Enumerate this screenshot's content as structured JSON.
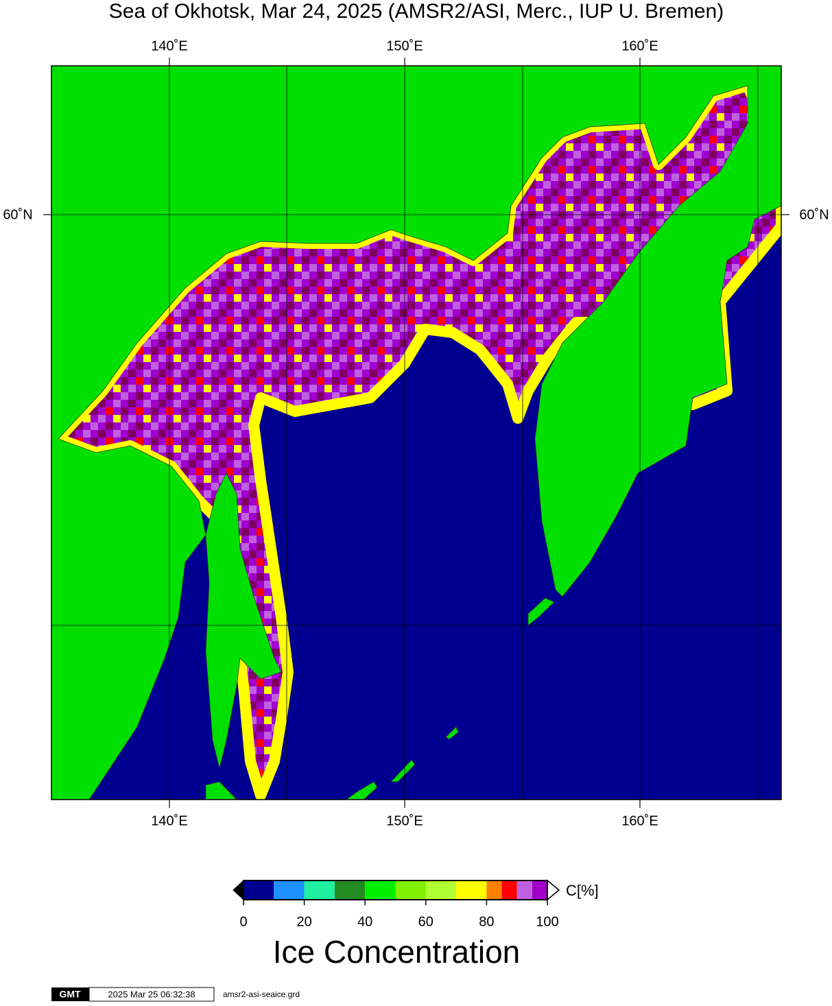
{
  "header": {
    "title": "Sea of Okhotsk, Mar 24, 2025 (AMSR2/ASI, Merc., IUP U. Bremen)"
  },
  "map": {
    "lon_labels": [
      "140˚E",
      "150˚E",
      "160˚E"
    ],
    "lat_labels": [
      "60˚N"
    ]
  },
  "colorbar": {
    "bins": [
      0,
      10,
      20,
      30,
      40,
      50,
      60,
      70,
      80,
      85,
      90,
      95,
      100
    ],
    "colors": [
      "#000090",
      "#1e90ff",
      "#20f0a0",
      "#228b22",
      "#00ee00",
      "#80f000",
      "#b0ff30",
      "#ffff00",
      "#ff8000",
      "#ff0000",
      "#c060e0",
      "#a000c8"
    ],
    "range": [
      0,
      100
    ],
    "ticks": [
      0,
      20,
      40,
      60,
      80,
      100
    ],
    "unit": "C[%]",
    "title": "Ice Concentration"
  },
  "footer": {
    "logo": "GMT",
    "timestamp": "2025 Mar 25 06:32:38",
    "file": "amsr2-asi-seaice.grd"
  }
}
